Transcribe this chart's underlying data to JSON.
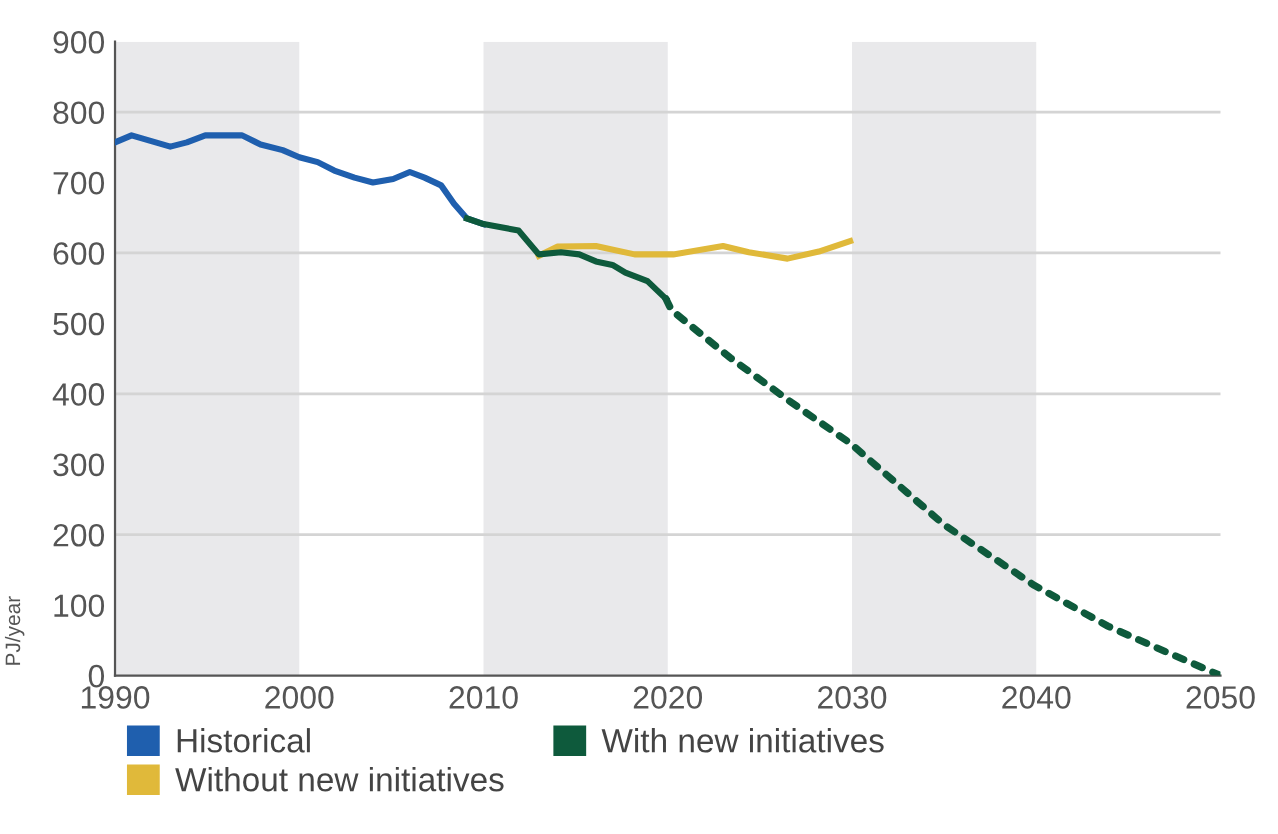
{
  "chart_data": {
    "type": "line",
    "ylabel": "PJ/year",
    "xlim": [
      1990,
      2050
    ],
    "ylim": [
      0,
      900
    ],
    "xticks": [
      1990,
      2000,
      2010,
      2020,
      2030,
      2040,
      2050
    ],
    "yticks": [
      0,
      100,
      200,
      300,
      400,
      500,
      600,
      700,
      800,
      900
    ],
    "series": [
      {
        "name": "Historical",
        "color": "#1f5fae",
        "line_style": "solid",
        "x": [
          1990,
          1990.9,
          1993,
          1993.9,
          1994.9,
          1996.9,
          1997.9,
          1999.1,
          2000,
          2001,
          2001.9,
          2003,
          2004,
          2005.1,
          2006,
          2006.8,
          2007.7,
          2008.4,
          2009.1,
          2010
        ],
        "values": [
          757,
          767,
          751,
          757,
          767,
          767,
          754,
          746,
          736,
          729,
          717,
          707,
          700,
          705,
          715,
          707,
          696,
          670,
          649,
          641
        ]
      },
      {
        "name": "Without new initiatives",
        "color": "#e0b93a",
        "line_style": "solid",
        "x": [
          2013,
          2014,
          2016.1,
          2018.2,
          2020.3,
          2023,
          2024.4,
          2026.5,
          2028.2,
          2029.9
        ],
        "values": [
          596,
          609,
          610,
          598,
          598,
          610,
          601,
          592,
          602,
          617
        ]
      },
      {
        "name": "With new initiatives",
        "color": "#0e5a3c",
        "line_style": "solid",
        "x": [
          2009.1,
          2010,
          2011.9,
          2013,
          2014.2,
          2015.2,
          2016.1,
          2017,
          2017.7,
          2018.9,
          2019.9
        ],
        "values": [
          649,
          641,
          632,
          598,
          601,
          598,
          588,
          583,
          572,
          560,
          535
        ]
      },
      {
        "color": "#0e5a3c",
        "line_style": "dotted",
        "x": [
          2019.9,
          2020.2,
          2023.4,
          2026.7,
          2029.9,
          2035,
          2039.9,
          2043.9,
          2046.4,
          2050
        ],
        "values": [
          535,
          519,
          451,
          388,
          330,
          214,
          128,
          70,
          41,
          0
        ]
      }
    ],
    "bands": [
      {
        "axis": "x",
        "from": 1990,
        "to": 2000,
        "color": "#e9e9eb"
      },
      {
        "axis": "x",
        "from": 2010,
        "to": 2020,
        "color": "#e9e9eb"
      },
      {
        "axis": "x",
        "from": 2030,
        "to": 2040,
        "color": "#e9e9eb"
      }
    ],
    "ref_lines": [
      {
        "axis": "y",
        "value": 200,
        "color": "#d4d4d4"
      },
      {
        "axis": "y",
        "value": 400,
        "color": "#d4d4d4"
      },
      {
        "axis": "y",
        "value": 600,
        "color": "#d4d4d4"
      },
      {
        "axis": "y",
        "value": 800,
        "color": "#d4d4d4"
      }
    ],
    "grid": false,
    "legend": "bottom"
  }
}
